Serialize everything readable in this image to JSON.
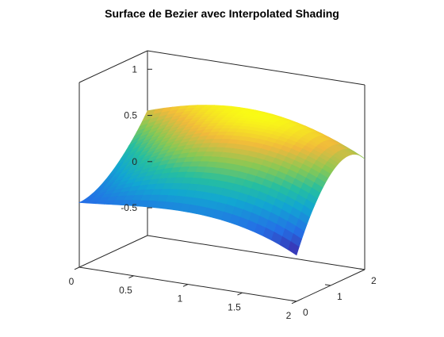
{
  "window": {
    "title": "Surface de Bezier avec Interpolated Shading"
  },
  "chart_data": {
    "type": "surface",
    "title": "Surface de Bezier avec Interpolated Shading",
    "xlabel": "",
    "ylabel": "",
    "zlabel": "",
    "xlim": [
      0,
      2
    ],
    "ylim": [
      0,
      2
    ],
    "zlim": [
      -0.8,
      1.2
    ],
    "x_ticks": [
      "0",
      "0.5",
      "1",
      "1.5",
      "2"
    ],
    "y_ticks": [
      "0",
      "1",
      "2"
    ],
    "z_ticks": [
      "-0.5",
      "0",
      "0.5",
      "1"
    ],
    "grid": false,
    "box": true,
    "colormap": "parula",
    "shading": "interp",
    "view": "3-D perspective (azimuth -37.5, elevation 30)",
    "surface": {
      "x": [
        0,
        0.5,
        1,
        1.5,
        2
      ],
      "y": [
        0,
        0.5,
        1,
        1.5,
        2
      ],
      "z": [
        [
          -0.1,
          -0.1,
          0.05,
          0.25,
          0.55
        ],
        [
          -0.05,
          0.35,
          0.55,
          0.7,
          0.75
        ],
        [
          0.05,
          0.55,
          0.8,
          0.9,
          0.85
        ],
        [
          0.0,
          0.5,
          0.78,
          0.9,
          0.7
        ],
        [
          -0.3,
          0.2,
          0.5,
          0.65,
          0.4
        ]
      ]
    },
    "colors": {
      "low": "#3e26a8",
      "mid": "#25b6c8",
      "high": "#f9fb15"
    }
  }
}
